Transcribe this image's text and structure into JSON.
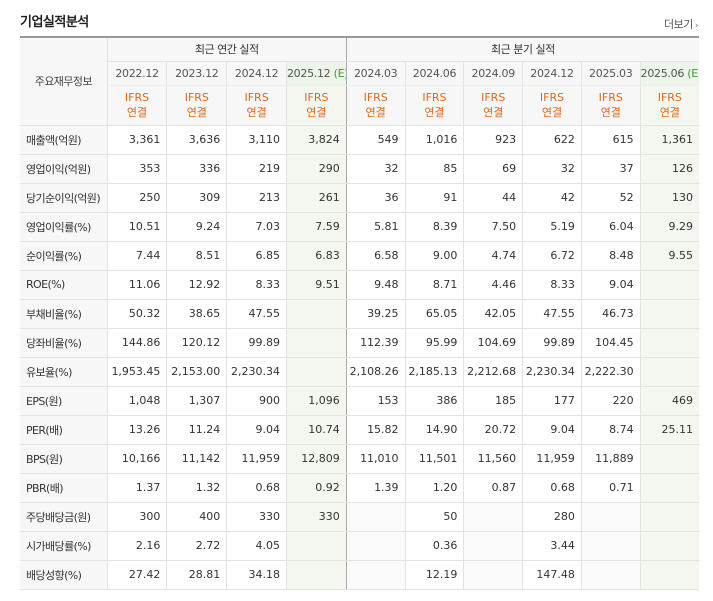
{
  "header": {
    "title": "기업실적분석",
    "more_label": "더보기",
    "more_icon": "chevron-right-icon"
  },
  "table": {
    "corner_label": "주요재무정보",
    "group_annual": "최근 연간 실적",
    "group_quarter": "최근 분기 실적",
    "periods": [
      {
        "label": "2022.12",
        "est": false,
        "e": ""
      },
      {
        "label": "2023.12",
        "est": false,
        "e": ""
      },
      {
        "label": "2024.12",
        "est": false,
        "e": ""
      },
      {
        "label": "2025.12",
        "est": true,
        "e": "(E)"
      },
      {
        "label": "2024.03",
        "est": false,
        "e": ""
      },
      {
        "label": "2024.06",
        "est": false,
        "e": ""
      },
      {
        "label": "2024.09",
        "est": false,
        "e": ""
      },
      {
        "label": "2024.12",
        "est": false,
        "e": ""
      },
      {
        "label": "2025.03",
        "est": false,
        "e": ""
      },
      {
        "label": "2025.06",
        "est": true,
        "e": "(E)"
      }
    ],
    "ifrs_top": "IFRS",
    "ifrs_bottom": "연결",
    "rows": [
      {
        "label": "매출액(억원)",
        "values": [
          "3,361",
          "3,636",
          "3,110",
          "3,824",
          "549",
          "1,016",
          "923",
          "622",
          "615",
          "1,361"
        ]
      },
      {
        "label": "영업이익(억원)",
        "values": [
          "353",
          "336",
          "219",
          "290",
          "32",
          "85",
          "69",
          "32",
          "37",
          "126"
        ]
      },
      {
        "label": "당기순이익(억원)",
        "values": [
          "250",
          "309",
          "213",
          "261",
          "36",
          "91",
          "44",
          "42",
          "52",
          "130"
        ]
      },
      {
        "label": "영업이익률(%)",
        "values": [
          "10.51",
          "9.24",
          "7.03",
          "7.59",
          "5.81",
          "8.39",
          "7.50",
          "5.19",
          "6.04",
          "9.29"
        ],
        "sep": true
      },
      {
        "label": "순이익률(%)",
        "values": [
          "7.44",
          "8.51",
          "6.85",
          "6.83",
          "6.58",
          "9.00",
          "4.74",
          "6.72",
          "8.48",
          "9.55"
        ]
      },
      {
        "label": "ROE(%)",
        "values": [
          "11.06",
          "12.92",
          "8.33",
          "9.51",
          "9.48",
          "8.71",
          "4.46",
          "8.33",
          "9.04",
          ""
        ]
      },
      {
        "label": "부채비율(%)",
        "values": [
          "50.32",
          "38.65",
          "47.55",
          "",
          "39.25",
          "65.05",
          "42.05",
          "47.55",
          "46.73",
          ""
        ],
        "sep": true
      },
      {
        "label": "당좌비율(%)",
        "values": [
          "144.86",
          "120.12",
          "99.89",
          "",
          "112.39",
          "95.99",
          "104.69",
          "99.89",
          "104.45",
          ""
        ]
      },
      {
        "label": "유보율(%)",
        "values": [
          "1,953.45",
          "2,153.00",
          "2,230.34",
          "",
          "2,108.26",
          "2,185.13",
          "2,212.68",
          "2,230.34",
          "2,222.30",
          ""
        ]
      },
      {
        "label": "EPS(원)",
        "values": [
          "1,048",
          "1,307",
          "900",
          "1,096",
          "153",
          "386",
          "185",
          "177",
          "220",
          "469"
        ],
        "sep": true
      },
      {
        "label": "PER(배)",
        "values": [
          "13.26",
          "11.24",
          "9.04",
          "10.74",
          "15.82",
          "14.90",
          "20.72",
          "9.04",
          "8.74",
          "25.11"
        ]
      },
      {
        "label": "BPS(원)",
        "values": [
          "10,166",
          "11,142",
          "11,959",
          "12,809",
          "11,010",
          "11,501",
          "11,560",
          "11,959",
          "11,889",
          ""
        ]
      },
      {
        "label": "PBR(배)",
        "values": [
          "1.37",
          "1.32",
          "0.68",
          "0.92",
          "1.39",
          "1.20",
          "0.87",
          "0.68",
          "0.71",
          ""
        ]
      },
      {
        "label": "주당배당금(원)",
        "values": [
          "300",
          "400",
          "330",
          "330",
          "",
          "50",
          "",
          "280",
          "",
          ""
        ],
        "sep": true
      },
      {
        "label": "시가배당률(%)",
        "values": [
          "2.16",
          "2.72",
          "4.05",
          "",
          "",
          "0.36",
          "",
          "3.44",
          "",
          ""
        ]
      },
      {
        "label": "배당성향(%)",
        "values": [
          "27.42",
          "28.81",
          "34.18",
          "",
          "",
          "12.19",
          "",
          "147.48",
          "",
          ""
        ]
      }
    ]
  },
  "colors": {
    "ifrs": "#e2661a",
    "estimate_bg": "#f3f7f0",
    "estimate_mark": "#3a9a3a"
  }
}
